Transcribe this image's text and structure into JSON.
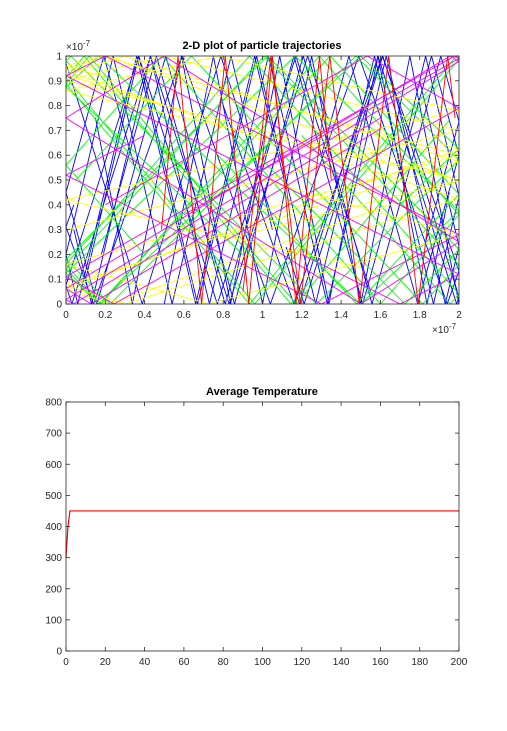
{
  "chart_data": [
    {
      "type": "line",
      "title": "2-D plot of particle trajectories",
      "xlabel": "",
      "ylabel": "",
      "xlim": [
        0,
        2e-07
      ],
      "ylim": [
        0,
        1e-07
      ],
      "x_ticks": [
        0,
        0.2,
        0.4,
        0.6,
        0.8,
        1,
        1.2,
        1.4,
        1.6,
        1.8,
        2
      ],
      "y_ticks": [
        0,
        0.1,
        0.2,
        0.3,
        0.4,
        0.5,
        0.6,
        0.7,
        0.8,
        0.9,
        1
      ],
      "x_tick_labels": [
        "0",
        "0.2",
        "0.4",
        "0.6",
        "0.8",
        "1",
        "1.2",
        "1.4",
        "1.6",
        "1.8",
        "2"
      ],
      "y_tick_labels": [
        "0",
        "0.1",
        "0.2",
        "0.3",
        "0.4",
        "0.5",
        "0.6",
        "0.7",
        "0.8",
        "0.9",
        "1"
      ],
      "x_exponent_label": "×10",
      "x_exponent_power": "-7",
      "y_exponent_label": "×10",
      "y_exponent_power": "-7",
      "grid": false,
      "colors": [
        "#0000ff",
        "#00ff00",
        "#ffff00",
        "#ff00ff",
        "#ff0000"
      ],
      "series": [
        {
          "color": "#0000ff",
          "x0": 0.0,
          "y0": 0.97,
          "vx": 0.4,
          "vy": -1.0
        },
        {
          "color": "#0000ff",
          "x0": 0.1,
          "y0": 0.1,
          "vx": 0.3,
          "vy": 1.0
        },
        {
          "color": "#0000ff",
          "x0": 0.35,
          "y0": 0.55,
          "vx": -0.35,
          "vy": 1.0
        },
        {
          "color": "#0000ff",
          "x0": 0.5,
          "y0": 0.0,
          "vx": 0.25,
          "vy": 1.0
        },
        {
          "color": "#0000ff",
          "x0": 0.8,
          "y0": 0.8,
          "vx": 0.45,
          "vy": -1.0
        },
        {
          "color": "#0000ff",
          "x0": 1.05,
          "y0": 0.3,
          "vx": -0.3,
          "vy": 1.0
        },
        {
          "color": "#0000ff",
          "x0": 1.3,
          "y0": 0.6,
          "vx": 0.35,
          "vy": 1.0
        },
        {
          "color": "#0000ff",
          "x0": 1.55,
          "y0": 0.05,
          "vx": -0.4,
          "vy": 1.0
        },
        {
          "color": "#0000ff",
          "x0": 1.8,
          "y0": 0.9,
          "vx": 0.3,
          "vy": -1.0
        },
        {
          "color": "#0000ff",
          "x0": 1.95,
          "y0": 0.45,
          "vx": -0.25,
          "vy": -1.0
        },
        {
          "color": "#00ff00",
          "x0": 0.05,
          "y0": 0.5,
          "vx": 1.0,
          "vy": 0.85
        },
        {
          "color": "#00ff00",
          "x0": 0.4,
          "y0": 0.2,
          "vx": -1.0,
          "vy": 0.9
        },
        {
          "color": "#00ff00",
          "x0": 0.85,
          "y0": 0.7,
          "vx": 1.0,
          "vy": -0.8
        },
        {
          "color": "#00ff00",
          "x0": 1.25,
          "y0": 0.1,
          "vx": -1.0,
          "vy": -0.95
        },
        {
          "color": "#00ff00",
          "x0": 1.7,
          "y0": 0.4,
          "vx": 1.0,
          "vy": 0.75
        },
        {
          "color": "#ffff00",
          "x0": 0.0,
          "y0": 0.3,
          "vx": 1.0,
          "vy": 0.2
        },
        {
          "color": "#ffff00",
          "x0": 0.5,
          "y0": 0.8,
          "vx": -1.0,
          "vy": 0.25
        },
        {
          "color": "#ffff00",
          "x0": 1.0,
          "y0": 0.5,
          "vx": 1.0,
          "vy": -0.22
        },
        {
          "color": "#ffff00",
          "x0": 1.5,
          "y0": 0.15,
          "vx": -1.0,
          "vy": 0.18
        },
        {
          "color": "#ffff00",
          "x0": 1.9,
          "y0": 0.65,
          "vx": 1.0,
          "vy": -0.28
        },
        {
          "color": "#ff00ff",
          "x0": 0.2,
          "y0": 0.4,
          "vx": 1.0,
          "vy": 0.45
        },
        {
          "color": "#ff00ff",
          "x0": 0.7,
          "y0": 0.9,
          "vx": -1.0,
          "vy": 0.5
        },
        {
          "color": "#ff00ff",
          "x0": 1.2,
          "y0": 0.2,
          "vx": 1.0,
          "vy": -0.4
        },
        {
          "color": "#ff00ff",
          "x0": 1.6,
          "y0": 0.75,
          "vx": -1.0,
          "vy": -0.48
        },
        {
          "color": "#ff0000",
          "x0": 0.9,
          "y0": 0.05,
          "vx": 0.15,
          "vy": 1.0
        },
        {
          "color": "#ff0000",
          "x0": 1.35,
          "y0": 0.5,
          "vx": -0.12,
          "vy": 1.0
        }
      ]
    },
    {
      "type": "line",
      "title": "Average Temperature",
      "xlabel": "",
      "ylabel": "",
      "xlim": [
        0,
        200
      ],
      "ylim": [
        0,
        800
      ],
      "x_ticks": [
        0,
        20,
        40,
        60,
        80,
        100,
        120,
        140,
        160,
        180,
        200
      ],
      "y_ticks": [
        0,
        100,
        200,
        300,
        400,
        500,
        600,
        700,
        800
      ],
      "x_tick_labels": [
        "0",
        "20",
        "40",
        "60",
        "80",
        "100",
        "120",
        "140",
        "160",
        "180",
        "200"
      ],
      "y_tick_labels": [
        "0",
        "100",
        "200",
        "300",
        "400",
        "500",
        "600",
        "700",
        "800"
      ],
      "grid": false,
      "series": [
        {
          "color": "#ff0000",
          "x": [
            0,
            1,
            2,
            3,
            200
          ],
          "y": [
            300,
            400,
            450,
            450,
            450
          ]
        }
      ]
    }
  ]
}
